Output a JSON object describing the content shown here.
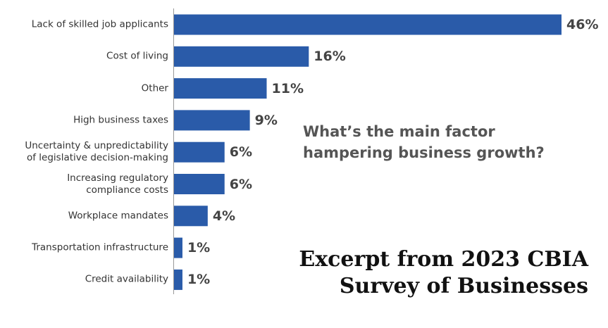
{
  "chart_data": {
    "type": "hbar",
    "annotation": "What’s the main factor\nhampering business growth?",
    "caption": "Excerpt from 2023 CBIA\nSurvey of Businesses",
    "categories": [
      "Lack of skilled job applicants",
      "Cost of living",
      "Other",
      "High business taxes",
      "Uncertainty & unpredictability\nof legislative decision-making",
      "Increasing regulatory\ncompliance costs",
      "Workplace mandates",
      "Transportation infrastructure",
      "Credit availability"
    ],
    "values": [
      46,
      16,
      11,
      9,
      6,
      6,
      4,
      1,
      1
    ],
    "value_labels": [
      "46%",
      "16%",
      "11%",
      "9%",
      "6%",
      "6%",
      "4%",
      "1%",
      "1%"
    ],
    "color": "#2a5ba9"
  }
}
